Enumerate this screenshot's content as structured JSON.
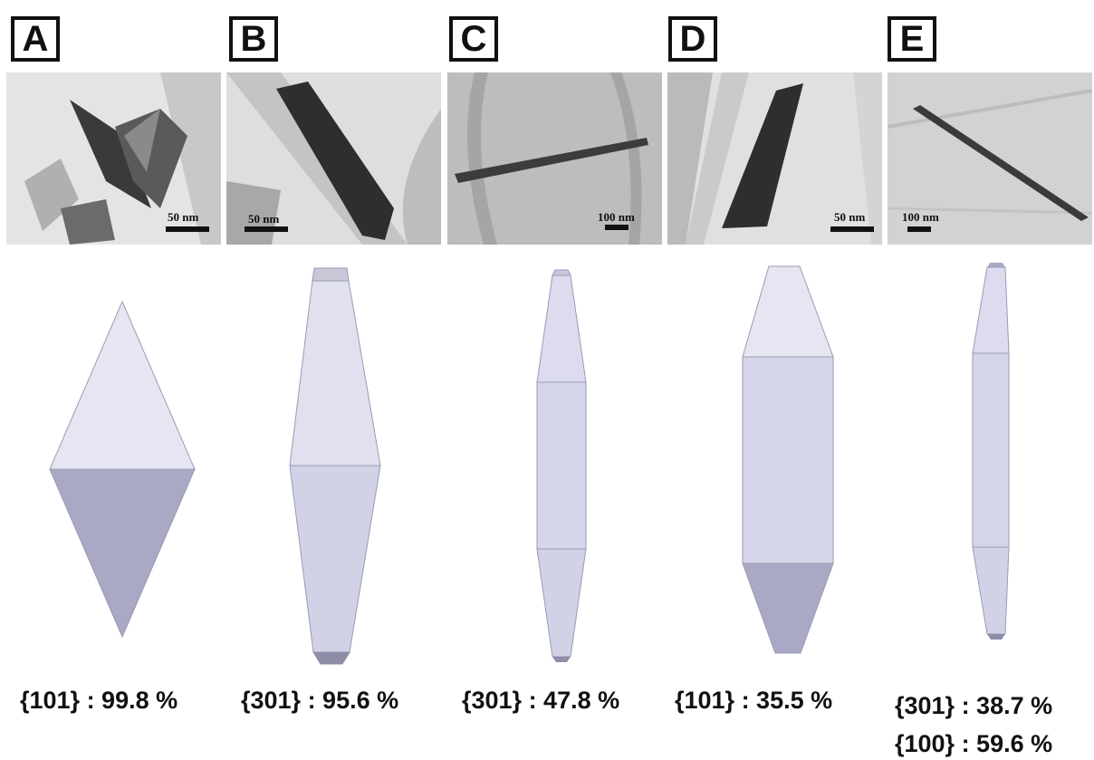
{
  "panels": [
    {
      "label": "A",
      "scale": "50 nm",
      "facets": [
        "{101} : 99.8 %"
      ]
    },
    {
      "label": "B",
      "scale": "50 nm",
      "facets": [
        "{301} : 95.6 %"
      ]
    },
    {
      "label": "C",
      "scale": "100 nm",
      "facets": [
        "{301} : 47.8 %"
      ]
    },
    {
      "label": "D",
      "scale": "50 nm",
      "facets": [
        "{101} : 35.5 %"
      ]
    },
    {
      "label": "E",
      "scale": "100 nm",
      "facets": [
        "{301} : 38.7 %",
        "{100} : 59.6 %"
      ]
    }
  ],
  "colors": {
    "light_face": "#e6e6f3",
    "mid_face": "#d2d2e6",
    "dark_face": "#a9a9c6",
    "tip_face": "#8d8da8",
    "tem_bg": "#cfcfcf"
  }
}
